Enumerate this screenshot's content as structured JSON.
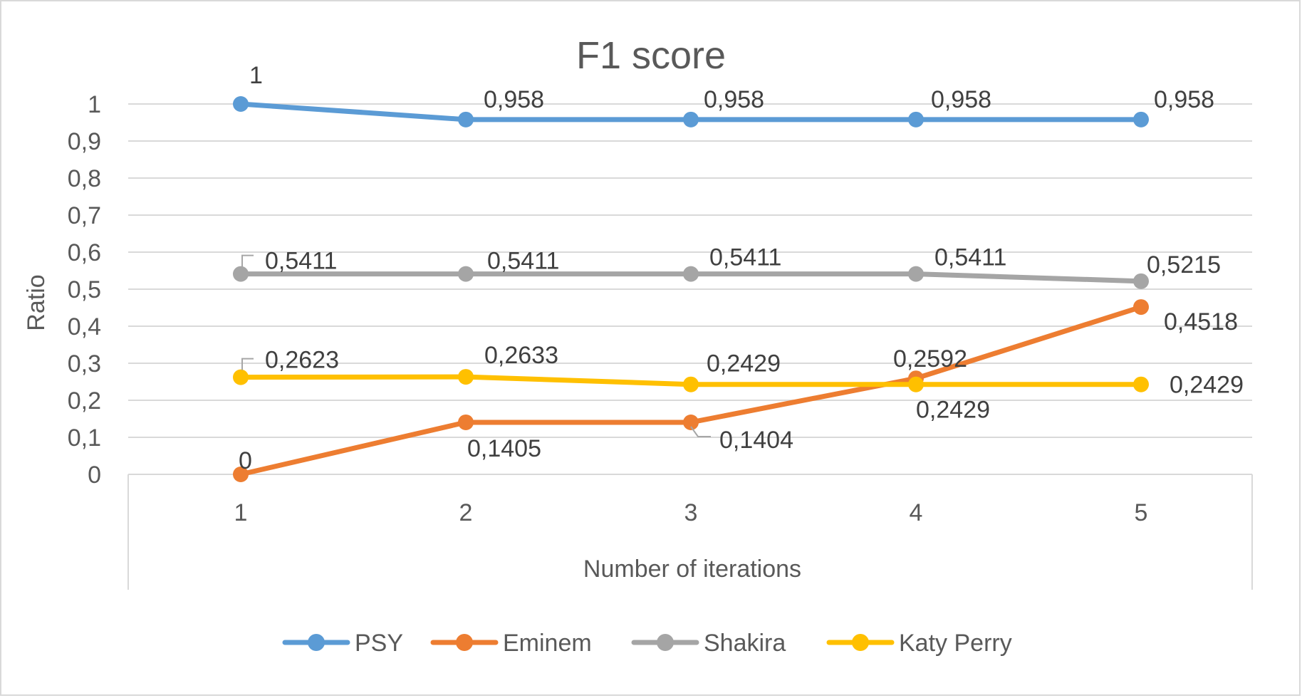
{
  "chart_data": {
    "type": "line",
    "title": "F1 score",
    "xlabel": "Number of iterations",
    "ylabel": "Ratio",
    "categories": [
      "1",
      "2",
      "3",
      "4",
      "5"
    ],
    "ylim": [
      0,
      1
    ],
    "yticks": [
      {
        "value": 0,
        "label": "0"
      },
      {
        "value": 0.1,
        "label": "0,1"
      },
      {
        "value": 0.2,
        "label": "0,2"
      },
      {
        "value": 0.3,
        "label": "0,3"
      },
      {
        "value": 0.4,
        "label": "0,4"
      },
      {
        "value": 0.5,
        "label": "0,5"
      },
      {
        "value": 0.6,
        "label": "0,6"
      },
      {
        "value": 0.7,
        "label": "0,7"
      },
      {
        "value": 0.8,
        "label": "0,8"
      },
      {
        "value": 0.9,
        "label": "0,9"
      },
      {
        "value": 1,
        "label": "1"
      }
    ],
    "grid": true,
    "legend_position": "bottom",
    "series": [
      {
        "name": "PSY",
        "color": "#5B9BD5",
        "values": [
          1,
          0.958,
          0.958,
          0.958,
          0.958
        ],
        "labels": [
          "1",
          "0,958",
          "0,958",
          "0,958",
          "0,958"
        ]
      },
      {
        "name": "Eminem",
        "color": "#ED7D31",
        "values": [
          0,
          0.1405,
          0.1404,
          0.2592,
          0.4518
        ],
        "labels": [
          "0",
          "0,1405",
          "0,1404",
          "0,2592",
          "0,4518"
        ]
      },
      {
        "name": "Shakira",
        "color": "#A5A5A5",
        "values": [
          0.5411,
          0.5411,
          0.5411,
          0.5411,
          0.5215
        ],
        "labels": [
          "0,5411",
          "0,5411",
          "0,5411",
          "0,5411",
          "0,5215"
        ]
      },
      {
        "name": "Katy Perry",
        "color": "#FFC000",
        "values": [
          0.2623,
          0.2633,
          0.2429,
          0.2429,
          0.2429
        ],
        "labels": [
          "0,2623",
          "0,2633",
          "0,2429",
          "0,2429",
          "0,2429"
        ]
      }
    ]
  }
}
